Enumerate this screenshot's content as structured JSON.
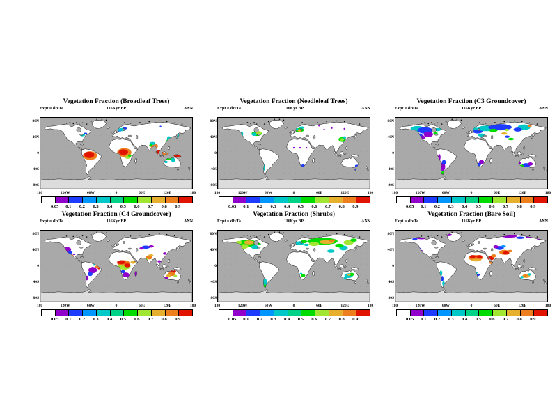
{
  "chart_data": {
    "type": "map-grid",
    "figure": "Vegetation fraction world maps, 2 rows x 3 columns",
    "rows": 2,
    "cols": 3,
    "subtitle": "116Kyr BP",
    "experiment_label": "Expt = dIvTa",
    "season_label": "ANN",
    "colorbar": {
      "levels": [
        "0.05",
        "0.1",
        "0.2",
        "0.3",
        "0.4",
        "0.5",
        "0.6",
        "0.7",
        "0.8",
        "0.9"
      ],
      "colors": [
        "#ffffff",
        "#9100cb",
        "#1e3cff",
        "#0096ff",
        "#00c8c8",
        "#00d287",
        "#00dc00",
        "#a0e632",
        "#e6af2d",
        "#ee7f1f",
        "#e11400"
      ]
    },
    "axes": {
      "lon_ticks": [
        "180",
        "120W",
        "60W",
        "0",
        "60E",
        "120E",
        "180"
      ],
      "lon_degrees": [
        -180,
        -120,
        -60,
        0,
        60,
        120,
        180
      ],
      "lat_ticks": [
        "80N",
        "40N",
        "0",
        "40S",
        "80S"
      ],
      "lat_degrees": [
        80,
        40,
        0,
        -40,
        -80
      ]
    },
    "map_colors": {
      "ocean": "#a9a9a9",
      "land": "#ffffff",
      "ice": "#dcdcdc",
      "coast": "#000000",
      "grid_dot": "#8a8a8a"
    },
    "region_format": "[x = lon+180, y = 90-lat, rx, ry, color_index into colorbar.colors]",
    "panels": [
      {
        "title": "Vegetation Fraction (Broadleaf Trees)",
        "regions": [
          [
            118,
            96,
            17,
            11,
            9
          ],
          [
            116,
            94,
            12,
            8,
            10
          ],
          [
            199,
            88,
            17,
            11,
            9
          ],
          [
            197,
            87,
            11,
            7,
            10
          ],
          [
            207,
            100,
            6,
            4,
            7
          ],
          [
            212,
            96,
            4,
            3,
            6
          ],
          [
            283,
            87,
            8,
            5,
            10
          ],
          [
            294,
            92,
            10,
            4,
            9
          ],
          [
            324,
            97,
            9,
            4,
            10
          ],
          [
            270,
            72,
            9,
            6,
            9
          ],
          [
            266,
            65,
            7,
            4,
            4
          ],
          [
            262,
            70,
            4,
            3,
            6
          ],
          [
            305,
            54,
            5,
            7,
            4
          ],
          [
            302,
            62,
            5,
            6,
            6
          ],
          [
            299,
            69,
            5,
            5,
            9
          ],
          [
            326,
            46,
            3,
            6,
            4
          ],
          [
            193,
            30,
            9,
            4,
            4
          ],
          [
            200,
            27,
            5,
            3,
            2
          ],
          [
            188,
            33,
            4,
            2,
            3
          ],
          [
            100,
            44,
            6,
            3,
            4
          ],
          [
            107,
            40,
            4,
            2,
            2
          ],
          [
            305,
            103,
            8,
            4,
            6
          ],
          [
            315,
            107,
            5,
            5,
            4
          ],
          [
            298,
            112,
            4,
            3,
            4
          ],
          [
            285,
            22,
            2,
            2,
            2
          ]
        ]
      },
      {
        "title": "Vegetation Fraction (Needleleaf Trees)",
        "regions": [
          [
            92,
            40,
            12,
            6,
            6
          ],
          [
            97,
            38,
            7,
            4,
            7
          ],
          [
            86,
            42,
            6,
            4,
            4
          ],
          [
            94,
            36,
            4,
            2,
            8
          ],
          [
            57,
            41,
            3,
            5,
            4
          ],
          [
            193,
            31,
            11,
            5,
            6
          ],
          [
            194,
            32,
            5,
            3,
            8
          ],
          [
            186,
            29,
            5,
            3,
            4
          ],
          [
            199,
            25,
            6,
            3,
            4
          ],
          [
            295,
            55,
            9,
            6,
            6
          ],
          [
            294,
            55,
            5,
            3,
            7
          ],
          [
            300,
            50,
            4,
            3,
            4
          ],
          [
            110,
            126,
            2,
            8,
            4
          ],
          [
            329,
            122,
            4,
            3,
            2
          ],
          [
            326,
            131,
            2,
            2,
            2
          ],
          [
            202,
            121,
            4,
            3,
            2
          ],
          [
            180,
            76,
            2,
            2,
            1
          ],
          [
            195,
            76,
            2,
            2,
            1
          ],
          [
            210,
            76,
            2,
            2,
            1
          ],
          [
            252,
            30,
            2,
            2,
            1
          ],
          [
            270,
            26,
            2,
            2,
            1
          ],
          [
            300,
            28,
            2,
            2,
            1
          ],
          [
            240,
            20,
            2,
            2,
            1
          ]
        ]
      },
      {
        "title": "Vegetation Fraction (C3 Groundcover)",
        "regions": [
          [
            52,
            28,
            16,
            7,
            4
          ],
          [
            70,
            32,
            18,
            8,
            2
          ],
          [
            78,
            42,
            11,
            7,
            1
          ],
          [
            95,
            39,
            5,
            3,
            6
          ],
          [
            100,
            30,
            8,
            4,
            4
          ],
          [
            62,
            50,
            8,
            6,
            1
          ],
          [
            58,
            44,
            6,
            4,
            2
          ],
          [
            195,
            34,
            12,
            6,
            2
          ],
          [
            204,
            44,
            8,
            4,
            4
          ],
          [
            190,
            28,
            6,
            3,
            4
          ],
          [
            215,
            27,
            20,
            7,
            4
          ],
          [
            248,
            24,
            28,
            8,
            2
          ],
          [
            232,
            32,
            10,
            4,
            6
          ],
          [
            258,
            40,
            7,
            3,
            8
          ],
          [
            264,
            31,
            5,
            3,
            7
          ],
          [
            305,
            24,
            15,
            7,
            4
          ],
          [
            318,
            21,
            5,
            3,
            9
          ],
          [
            290,
            30,
            10,
            5,
            2
          ],
          [
            274,
            54,
            7,
            3,
            6
          ],
          [
            265,
            48,
            6,
            3,
            2
          ],
          [
            112,
            124,
            6,
            11,
            1
          ],
          [
            115,
            113,
            5,
            6,
            2
          ],
          [
            112,
            139,
            3,
            4,
            6
          ],
          [
            104,
            100,
            3,
            8,
            1
          ],
          [
            204,
            112,
            6,
            5,
            1
          ],
          [
            198,
            118,
            5,
            4,
            2
          ],
          [
            310,
            120,
            10,
            5,
            2
          ],
          [
            320,
            117,
            6,
            4,
            1
          ],
          [
            299,
            122,
            5,
            3,
            6
          ],
          [
            294,
            115,
            4,
            3,
            1
          ]
        ]
      },
      {
        "title": "Vegetation Fraction (C4 Groundcover)",
        "regions": [
          [
            199,
            90,
            15,
            9,
            7
          ],
          [
            197,
            82,
            15,
            7,
            9
          ],
          [
            192,
            80,
            10,
            5,
            10
          ],
          [
            206,
            88,
            7,
            5,
            10
          ],
          [
            203,
            112,
            8,
            6,
            1
          ],
          [
            196,
            104,
            5,
            4,
            2
          ],
          [
            226,
            110,
            3,
            6,
            1
          ],
          [
            220,
            80,
            6,
            4,
            8
          ],
          [
            258,
            68,
            8,
            5,
            9
          ],
          [
            262,
            63,
            6,
            3,
            8
          ],
          [
            252,
            72,
            4,
            3,
            7
          ],
          [
            282,
            78,
            4,
            3,
            1
          ],
          [
            288,
            85,
            3,
            2,
            1
          ],
          [
            314,
            104,
            8,
            4,
            10
          ],
          [
            311,
            110,
            9,
            5,
            9
          ],
          [
            304,
            115,
            6,
            4,
            8
          ],
          [
            299,
            120,
            5,
            3,
            1
          ],
          [
            320,
            115,
            4,
            3,
            7
          ],
          [
            124,
            100,
            10,
            8,
            1
          ],
          [
            118,
            110,
            6,
            5,
            2
          ],
          [
            134,
            92,
            5,
            3,
            9
          ],
          [
            139,
            96,
            3,
            2,
            10
          ],
          [
            128,
            87,
            4,
            2,
            4
          ],
          [
            110,
            120,
            4,
            6,
            1
          ],
          [
            64,
            48,
            9,
            6,
            1
          ],
          [
            70,
            55,
            6,
            4,
            2
          ],
          [
            59,
            52,
            3,
            2,
            4
          ],
          [
            75,
            64,
            4,
            3,
            9
          ],
          [
            80,
            60,
            3,
            2,
            1
          ],
          [
            250,
            42,
            10,
            4,
            2
          ],
          [
            263,
            40,
            6,
            3,
            1
          ],
          [
            240,
            45,
            5,
            3,
            1
          ],
          [
            295,
            58,
            4,
            3,
            1
          ]
        ]
      },
      {
        "title": "Vegetation Fraction (Shrubs)",
        "regions": [
          [
            70,
            32,
            22,
            9,
            6
          ],
          [
            74,
            30,
            12,
            5,
            8
          ],
          [
            62,
            40,
            10,
            6,
            7
          ],
          [
            88,
            42,
            9,
            5,
            4
          ],
          [
            57,
            50,
            4,
            3,
            2
          ],
          [
            96,
            34,
            6,
            3,
            6
          ],
          [
            50,
            30,
            8,
            4,
            7
          ],
          [
            248,
            27,
            36,
            9,
            6
          ],
          [
            258,
            29,
            18,
            5,
            8
          ],
          [
            270,
            25,
            8,
            3,
            9
          ],
          [
            228,
            34,
            12,
            5,
            7
          ],
          [
            194,
            32,
            10,
            5,
            4
          ],
          [
            204,
            28,
            8,
            4,
            6
          ],
          [
            298,
            44,
            10,
            6,
            4
          ],
          [
            288,
            38,
            10,
            5,
            6
          ],
          [
            268,
            52,
            9,
            4,
            4
          ],
          [
            310,
            30,
            12,
            6,
            7
          ],
          [
            322,
            24,
            8,
            4,
            6
          ],
          [
            210,
            36,
            6,
            3,
            4
          ],
          [
            310,
            114,
            10,
            6,
            4
          ],
          [
            317,
            111,
            6,
            4,
            6
          ],
          [
            311,
            112,
            4,
            2,
            8
          ],
          [
            302,
            120,
            4,
            3,
            4
          ],
          [
            112,
            130,
            4,
            9,
            4
          ],
          [
            111,
            140,
            3,
            4,
            6
          ],
          [
            202,
            114,
            5,
            4,
            6
          ],
          [
            197,
            109,
            3,
            2,
            4
          ]
        ]
      },
      {
        "title": "Vegetation Fraction (Bare Soil)",
        "regions": [
          [
            190,
            69,
            17,
            7,
            9
          ],
          [
            183,
            66,
            7,
            4,
            10
          ],
          [
            199,
            66,
            7,
            4,
            10
          ],
          [
            191,
            75,
            12,
            3,
            8
          ],
          [
            226,
            70,
            8,
            5,
            10
          ],
          [
            233,
            64,
            6,
            4,
            9
          ],
          [
            258,
            55,
            12,
            6,
            9
          ],
          [
            262,
            57,
            8,
            4,
            10
          ],
          [
            272,
            52,
            6,
            3,
            9
          ],
          [
            247,
            44,
            10,
            5,
            2
          ],
          [
            238,
            41,
            6,
            4,
            1
          ],
          [
            256,
            40,
            6,
            3,
            3
          ],
          [
            62,
            18,
            14,
            4,
            1
          ],
          [
            84,
            14,
            9,
            3,
            1
          ],
          [
            126,
            11,
            8,
            3,
            1
          ],
          [
            270,
            14,
            18,
            4,
            1
          ],
          [
            296,
            18,
            10,
            3,
            2
          ],
          [
            318,
            16,
            8,
            3,
            1
          ],
          [
            340,
            20,
            6,
            3,
            1
          ],
          [
            46,
            22,
            6,
            3,
            2
          ],
          [
            56,
            46,
            4,
            3,
            2
          ],
          [
            61,
            51,
            3,
            2,
            1
          ],
          [
            108,
            108,
            3,
            7,
            4
          ],
          [
            111,
            122,
            3,
            7,
            2
          ],
          [
            114,
            134,
            3,
            6,
            4
          ],
          [
            196,
            112,
            4,
            3,
            2
          ],
          [
            192,
            107,
            3,
            2,
            4
          ],
          [
            310,
            115,
            9,
            5,
            8
          ],
          [
            308,
            114,
            5,
            3,
            9
          ],
          [
            300,
            118,
            4,
            3,
            4
          ],
          [
            318,
            111,
            4,
            3,
            4
          ],
          [
            226,
            81,
            4,
            3,
            9
          ]
        ]
      }
    ]
  }
}
